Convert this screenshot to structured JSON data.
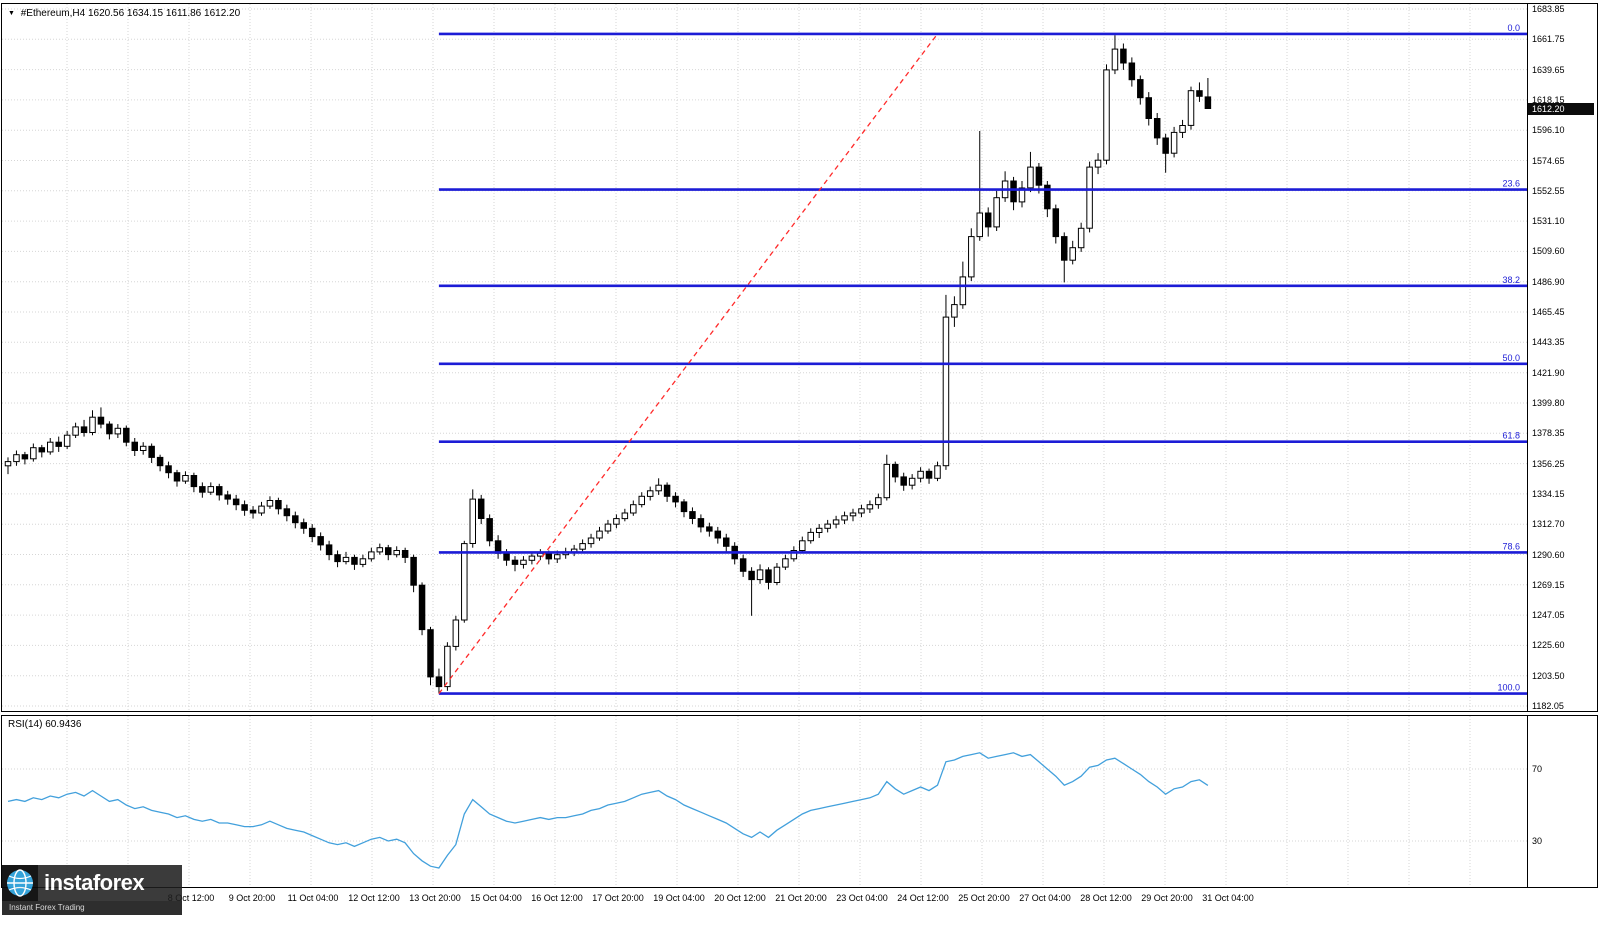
{
  "header": {
    "marker": "▼",
    "symbol": "#Ethereum,H4",
    "ohlc": "1620.56 1634.15 1611.86 1612.20"
  },
  "rsi_header": {
    "label": "RSI(14) 60.9436"
  },
  "price_axis": {
    "current": "1612.20",
    "current_value": 1612.2
  },
  "logo": {
    "brand": "instaforex",
    "tagline": "Instant Forex Trading"
  },
  "colors": {
    "background": "#ffffff",
    "grid": "#d6d6d6",
    "candle_outline": "#000000",
    "bull_fill": "#ffffff",
    "bear_fill": "#000000",
    "fib_line": "#1c1cd6",
    "trend_line": "#ff2a2a",
    "rsi_line": "#42a0dc",
    "badge_bg": "#0c0c0c",
    "badge_text": "#ffffff",
    "border": "#000000"
  },
  "chart_data": {
    "type": "candlestick",
    "symbol": "#Ethereum",
    "timeframe": "H4",
    "title": "#Ethereum,H4 1620.56 1634.15 1611.86 1612.20",
    "last_bar": {
      "open": 1620.56,
      "high": 1634.15,
      "low": 1611.86,
      "close": 1612.2
    },
    "price_range": {
      "top": 1683.85,
      "bottom": 1182.05
    },
    "price_labels": [
      "1683.85",
      "1661.75",
      "1639.65",
      "1618.15",
      "1596.10",
      "1574.65",
      "1552.55",
      "1531.10",
      "1509.60",
      "1486.90",
      "1465.45",
      "1443.35",
      "1421.90",
      "1399.80",
      "1378.35",
      "1356.25",
      "1334.15",
      "1312.70",
      "1290.60",
      "1269.15",
      "1247.05",
      "1225.60",
      "1203.50",
      "1182.05"
    ],
    "time_labels": [
      "8 Oct 12:00",
      "9 Oct 20:00",
      "11 Oct 04:00",
      "12 Oct 12:00",
      "13 Oct 20:00",
      "15 Oct 04:00",
      "16 Oct 12:00",
      "17 Oct 20:00",
      "19 Oct 04:00",
      "20 Oct 12:00",
      "21 Oct 20:00",
      "23 Oct 04:00",
      "24 Oct 12:00",
      "25 Oct 20:00",
      "27 Oct 04:00",
      "28 Oct 12:00",
      "29 Oct 20:00",
      "31 Oct 04:00"
    ],
    "candles": [
      [
        1355,
        1361,
        1349,
        1358
      ],
      [
        1358,
        1366,
        1355,
        1363
      ],
      [
        1363,
        1365,
        1356,
        1360
      ],
      [
        1360,
        1371,
        1358,
        1368
      ],
      [
        1368,
        1370,
        1361,
        1365
      ],
      [
        1365,
        1375,
        1363,
        1372
      ],
      [
        1372,
        1376,
        1365,
        1369
      ],
      [
        1369,
        1380,
        1367,
        1377
      ],
      [
        1377,
        1386,
        1375,
        1383
      ],
      [
        1383,
        1388,
        1376,
        1379
      ],
      [
        1379,
        1395,
        1377,
        1390
      ],
      [
        1390,
        1397,
        1382,
        1385
      ],
      [
        1385,
        1387,
        1374,
        1378
      ],
      [
        1378,
        1385,
        1375,
        1382
      ],
      [
        1382,
        1384,
        1369,
        1372
      ],
      [
        1372,
        1375,
        1362,
        1366
      ],
      [
        1366,
        1372,
        1363,
        1369
      ],
      [
        1369,
        1371,
        1357,
        1361
      ],
      [
        1361,
        1363,
        1351,
        1355
      ],
      [
        1355,
        1358,
        1346,
        1350
      ],
      [
        1350,
        1352,
        1340,
        1344
      ],
      [
        1344,
        1351,
        1342,
        1348
      ],
      [
        1348,
        1350,
        1336,
        1340
      ],
      [
        1340,
        1343,
        1332,
        1336
      ],
      [
        1336,
        1343,
        1334,
        1340
      ],
      [
        1340,
        1342,
        1330,
        1334
      ],
      [
        1334,
        1337,
        1327,
        1331
      ],
      [
        1331,
        1334,
        1323,
        1327
      ],
      [
        1327,
        1330,
        1319,
        1323
      ],
      [
        1323,
        1326,
        1317,
        1321
      ],
      [
        1321,
        1329,
        1319,
        1326
      ],
      [
        1326,
        1333,
        1324,
        1330
      ],
      [
        1330,
        1332,
        1320,
        1324
      ],
      [
        1324,
        1327,
        1315,
        1319
      ],
      [
        1319,
        1322,
        1310,
        1314
      ],
      [
        1314,
        1317,
        1306,
        1310
      ],
      [
        1310,
        1313,
        1300,
        1304
      ],
      [
        1304,
        1307,
        1294,
        1298
      ],
      [
        1298,
        1301,
        1287,
        1291
      ],
      [
        1291,
        1294,
        1282,
        1286
      ],
      [
        1286,
        1293,
        1284,
        1289
      ],
      [
        1289,
        1291,
        1280,
        1284
      ],
      [
        1284,
        1291,
        1282,
        1288
      ],
      [
        1288,
        1296,
        1286,
        1293
      ],
      [
        1293,
        1299,
        1291,
        1296
      ],
      [
        1296,
        1298,
        1287,
        1291
      ],
      [
        1291,
        1297,
        1289,
        1294
      ],
      [
        1294,
        1296,
        1285,
        1289
      ],
      [
        1289,
        1291,
        1264,
        1269
      ],
      [
        1269,
        1271,
        1233,
        1237
      ],
      [
        1237,
        1239,
        1197,
        1203
      ],
      [
        1203,
        1209,
        1191,
        1196
      ],
      [
        1196,
        1228,
        1193,
        1225
      ],
      [
        1225,
        1247,
        1222,
        1244
      ],
      [
        1244,
        1301,
        1242,
        1299
      ],
      [
        1299,
        1338,
        1296,
        1331
      ],
      [
        1331,
        1334,
        1313,
        1317
      ],
      [
        1317,
        1320,
        1297,
        1301
      ],
      [
        1301,
        1305,
        1288,
        1292
      ],
      [
        1292,
        1295,
        1283,
        1287
      ],
      [
        1287,
        1290,
        1279,
        1284
      ],
      [
        1284,
        1290,
        1281,
        1287
      ],
      [
        1287,
        1293,
        1284,
        1290
      ],
      [
        1290,
        1295,
        1287,
        1292
      ],
      [
        1292,
        1294,
        1284,
        1288
      ],
      [
        1288,
        1294,
        1285,
        1291
      ],
      [
        1291,
        1296,
        1288,
        1293
      ],
      [
        1293,
        1298,
        1290,
        1295
      ],
      [
        1295,
        1302,
        1293,
        1299
      ],
      [
        1299,
        1306,
        1296,
        1303
      ],
      [
        1303,
        1311,
        1301,
        1308
      ],
      [
        1308,
        1316,
        1306,
        1313
      ],
      [
        1313,
        1320,
        1310,
        1317
      ],
      [
        1317,
        1324,
        1315,
        1321
      ],
      [
        1321,
        1330,
        1319,
        1327
      ],
      [
        1327,
        1336,
        1325,
        1333
      ],
      [
        1333,
        1340,
        1330,
        1337
      ],
      [
        1337,
        1346,
        1334,
        1341
      ],
      [
        1341,
        1343,
        1329,
        1333
      ],
      [
        1333,
        1336,
        1325,
        1329
      ],
      [
        1329,
        1331,
        1318,
        1322
      ],
      [
        1322,
        1325,
        1313,
        1317
      ],
      [
        1317,
        1320,
        1307,
        1311
      ],
      [
        1311,
        1314,
        1304,
        1308
      ],
      [
        1308,
        1311,
        1299,
        1303
      ],
      [
        1303,
        1306,
        1293,
        1297
      ],
      [
        1297,
        1300,
        1284,
        1288
      ],
      [
        1288,
        1291,
        1275,
        1279
      ],
      [
        1279,
        1282,
        1247,
        1273
      ],
      [
        1273,
        1284,
        1270,
        1280
      ],
      [
        1280,
        1282,
        1266,
        1271
      ],
      [
        1271,
        1285,
        1269,
        1282
      ],
      [
        1282,
        1291,
        1280,
        1288
      ],
      [
        1288,
        1297,
        1286,
        1294
      ],
      [
        1294,
        1304,
        1292,
        1301
      ],
      [
        1301,
        1310,
        1299,
        1307
      ],
      [
        1307,
        1313,
        1303,
        1310
      ],
      [
        1310,
        1316,
        1307,
        1313
      ],
      [
        1313,
        1319,
        1310,
        1316
      ],
      [
        1316,
        1322,
        1313,
        1319
      ],
      [
        1319,
        1324,
        1315,
        1321
      ],
      [
        1321,
        1327,
        1318,
        1324
      ],
      [
        1324,
        1330,
        1321,
        1327
      ],
      [
        1327,
        1335,
        1324,
        1332
      ],
      [
        1332,
        1363,
        1330,
        1356
      ],
      [
        1356,
        1358,
        1343,
        1347
      ],
      [
        1347,
        1350,
        1337,
        1341
      ],
      [
        1341,
        1349,
        1338,
        1346
      ],
      [
        1346,
        1354,
        1343,
        1351
      ],
      [
        1351,
        1353,
        1342,
        1346
      ],
      [
        1346,
        1358,
        1344,
        1355
      ],
      [
        1355,
        1478,
        1352,
        1462
      ],
      [
        1462,
        1477,
        1455,
        1471
      ],
      [
        1471,
        1502,
        1468,
        1491
      ],
      [
        1491,
        1526,
        1488,
        1520
      ],
      [
        1520,
        1596,
        1517,
        1537
      ],
      [
        1537,
        1541,
        1520,
        1527
      ],
      [
        1527,
        1553,
        1524,
        1548
      ],
      [
        1548,
        1567,
        1545,
        1560
      ],
      [
        1560,
        1563,
        1539,
        1545
      ],
      [
        1545,
        1560,
        1541,
        1555
      ],
      [
        1555,
        1581,
        1552,
        1570
      ],
      [
        1570,
        1573,
        1551,
        1557
      ],
      [
        1557,
        1560,
        1534,
        1540
      ],
      [
        1540,
        1543,
        1515,
        1520
      ],
      [
        1520,
        1523,
        1487,
        1503
      ],
      [
        1503,
        1517,
        1500,
        1512
      ],
      [
        1512,
        1530,
        1509,
        1526
      ],
      [
        1526,
        1574,
        1523,
        1570
      ],
      [
        1570,
        1580,
        1565,
        1575
      ],
      [
        1575,
        1644,
        1572,
        1640
      ],
      [
        1640,
        1665,
        1637,
        1655
      ],
      [
        1655,
        1659,
        1640,
        1645
      ],
      [
        1645,
        1649,
        1628,
        1633
      ],
      [
        1633,
        1636,
        1615,
        1620
      ],
      [
        1620,
        1624,
        1600,
        1605
      ],
      [
        1605,
        1609,
        1586,
        1591
      ],
      [
        1591,
        1594,
        1566,
        1580
      ],
      [
        1580,
        1599,
        1577,
        1595
      ],
      [
        1595,
        1604,
        1591,
        1600
      ],
      [
        1600,
        1628,
        1597,
        1625
      ],
      [
        1625,
        1631,
        1617,
        1621
      ],
      [
        1620.56,
        1634.15,
        1611.86,
        1612.2
      ]
    ],
    "fibonacci": {
      "start_index": 51,
      "levels": [
        {
          "label": "0.0",
          "price": 1665.9
        },
        {
          "label": "23.6",
          "price": 1553.85
        },
        {
          "label": "38.2",
          "price": 1484.55
        },
        {
          "label": "50.0",
          "price": 1428.45
        },
        {
          "label": "61.8",
          "price": 1372.35
        },
        {
          "label": "78.6",
          "price": 1292.65
        },
        {
          "label": "100.0",
          "price": 1191.0
        }
      ]
    },
    "trendline": {
      "from": {
        "index": 51,
        "price": 1191.0
      },
      "to": {
        "index": 110,
        "price": 1665.9
      },
      "style": "dashed"
    },
    "rsi": {
      "period": 14,
      "current": 60.9436,
      "guide_levels": [
        70,
        30
      ],
      "guide_labels": [
        "70",
        "30"
      ],
      "values": [
        52,
        53,
        52,
        54,
        53,
        55,
        54,
        56,
        57,
        55,
        58,
        55,
        52,
        53,
        50,
        48,
        49,
        47,
        46,
        45,
        43,
        44,
        42,
        41,
        42,
        40,
        40,
        39,
        38,
        38,
        39,
        41,
        39,
        37,
        36,
        35,
        33,
        31,
        29,
        28,
        29,
        27,
        29,
        31,
        32,
        30,
        31,
        29,
        23,
        19,
        16,
        15,
        22,
        28,
        45,
        53,
        49,
        45,
        43,
        41,
        40,
        41,
        42,
        43,
        42,
        43,
        43,
        44,
        45,
        47,
        48,
        50,
        51,
        52,
        54,
        56,
        57,
        58,
        55,
        53,
        50,
        48,
        46,
        44,
        42,
        40,
        37,
        34,
        32,
        35,
        32,
        36,
        39,
        42,
        45,
        47,
        48,
        49,
        50,
        51,
        52,
        53,
        54,
        56,
        63,
        59,
        56,
        58,
        60,
        58,
        61,
        74,
        75,
        77,
        78,
        79,
        76,
        77,
        78,
        79,
        77,
        78,
        74,
        70,
        66,
        61,
        63,
        66,
        71,
        72,
        75,
        76,
        73,
        70,
        67,
        63,
        60,
        56,
        59,
        60,
        63,
        64,
        60.9
      ]
    }
  }
}
